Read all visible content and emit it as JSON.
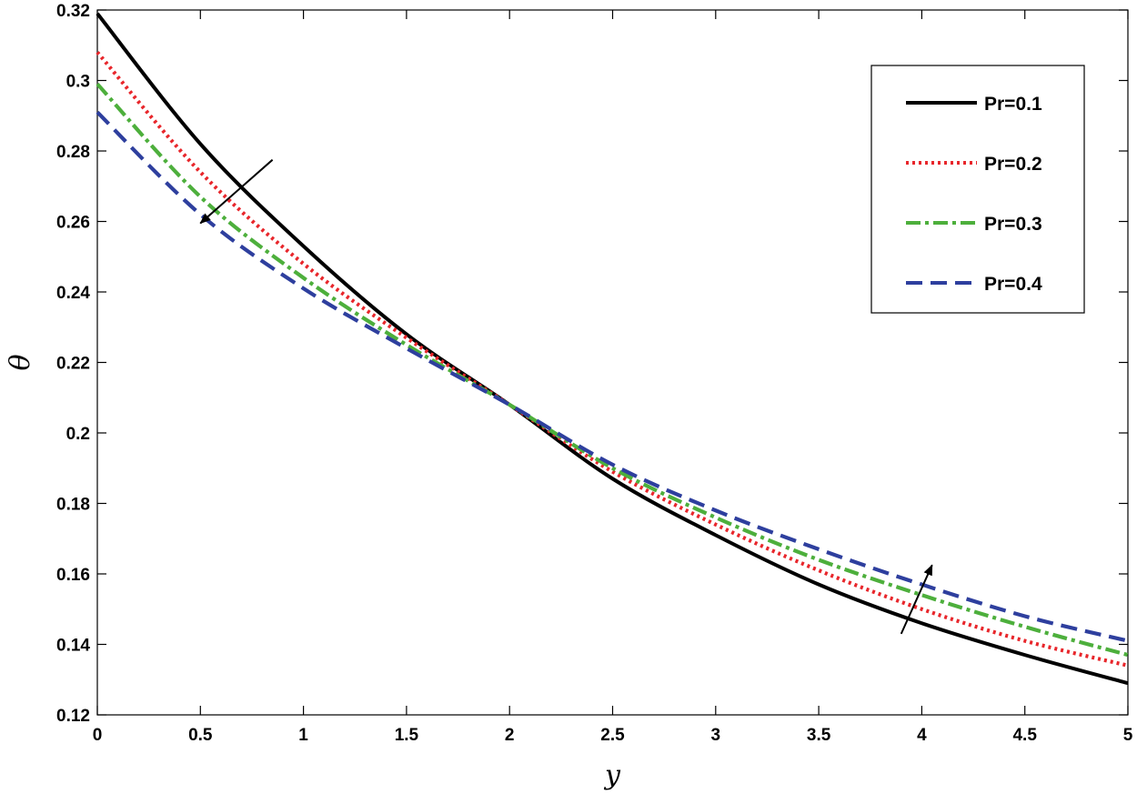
{
  "chart_data": {
    "type": "line",
    "xlabel": "y",
    "ylabel": "θ",
    "xlim": [
      0,
      5
    ],
    "ylim": [
      0.12,
      0.32
    ],
    "x_ticks": [
      "0",
      "0.5",
      "1",
      "1.5",
      "2",
      "2.5",
      "3",
      "3.5",
      "4",
      "4.5",
      "5"
    ],
    "y_ticks": [
      "0.12",
      "0.14",
      "0.16",
      "0.18",
      "0.2",
      "0.22",
      "0.24",
      "0.26",
      "0.28",
      "0.3",
      "0.32"
    ],
    "grid": false,
    "legend_position": "top-right",
    "series": [
      {
        "name": "Pr=0.1",
        "color": "#000000",
        "style": "solid",
        "x": [
          0,
          0.5,
          1,
          1.5,
          2,
          2.5,
          3,
          3.5,
          4,
          4.5,
          5
        ],
        "y": [
          0.319,
          0.282,
          0.253,
          0.228,
          0.208,
          0.187,
          0.171,
          0.157,
          0.146,
          0.137,
          0.129
        ]
      },
      {
        "name": "Pr=0.2",
        "color": "#e8262b",
        "style": "dotted",
        "x": [
          0,
          0.5,
          1,
          1.5,
          2,
          2.5,
          3,
          3.5,
          4,
          4.5,
          5
        ],
        "y": [
          0.308,
          0.274,
          0.248,
          0.227,
          0.208,
          0.189,
          0.174,
          0.161,
          0.15,
          0.141,
          0.134
        ]
      },
      {
        "name": "Pr=0.3",
        "color": "#4daf3c",
        "style": "dashdot",
        "x": [
          0,
          0.5,
          1,
          1.5,
          2,
          2.5,
          3,
          3.5,
          4,
          4.5,
          5
        ],
        "y": [
          0.299,
          0.267,
          0.244,
          0.225,
          0.208,
          0.19,
          0.176,
          0.164,
          0.154,
          0.145,
          0.137
        ]
      },
      {
        "name": "Pr=0.4",
        "color": "#2e3f9e",
        "style": "dashed",
        "x": [
          0,
          0.5,
          1,
          1.5,
          2,
          2.5,
          3,
          3.5,
          4,
          4.5,
          5
        ],
        "y": [
          0.291,
          0.262,
          0.241,
          0.224,
          0.208,
          0.191,
          0.178,
          0.167,
          0.157,
          0.148,
          0.141
        ]
      }
    ],
    "annotations": [
      {
        "type": "arrow",
        "from": [
          0.85,
          0.2775
        ],
        "to": [
          0.5,
          0.2595
        ],
        "meaning": "theta decreases with increasing Pr"
      },
      {
        "type": "arrow",
        "from": [
          3.9,
          0.143
        ],
        "to": [
          4.05,
          0.1625
        ],
        "meaning": "theta increases with increasing Pr"
      }
    ]
  }
}
